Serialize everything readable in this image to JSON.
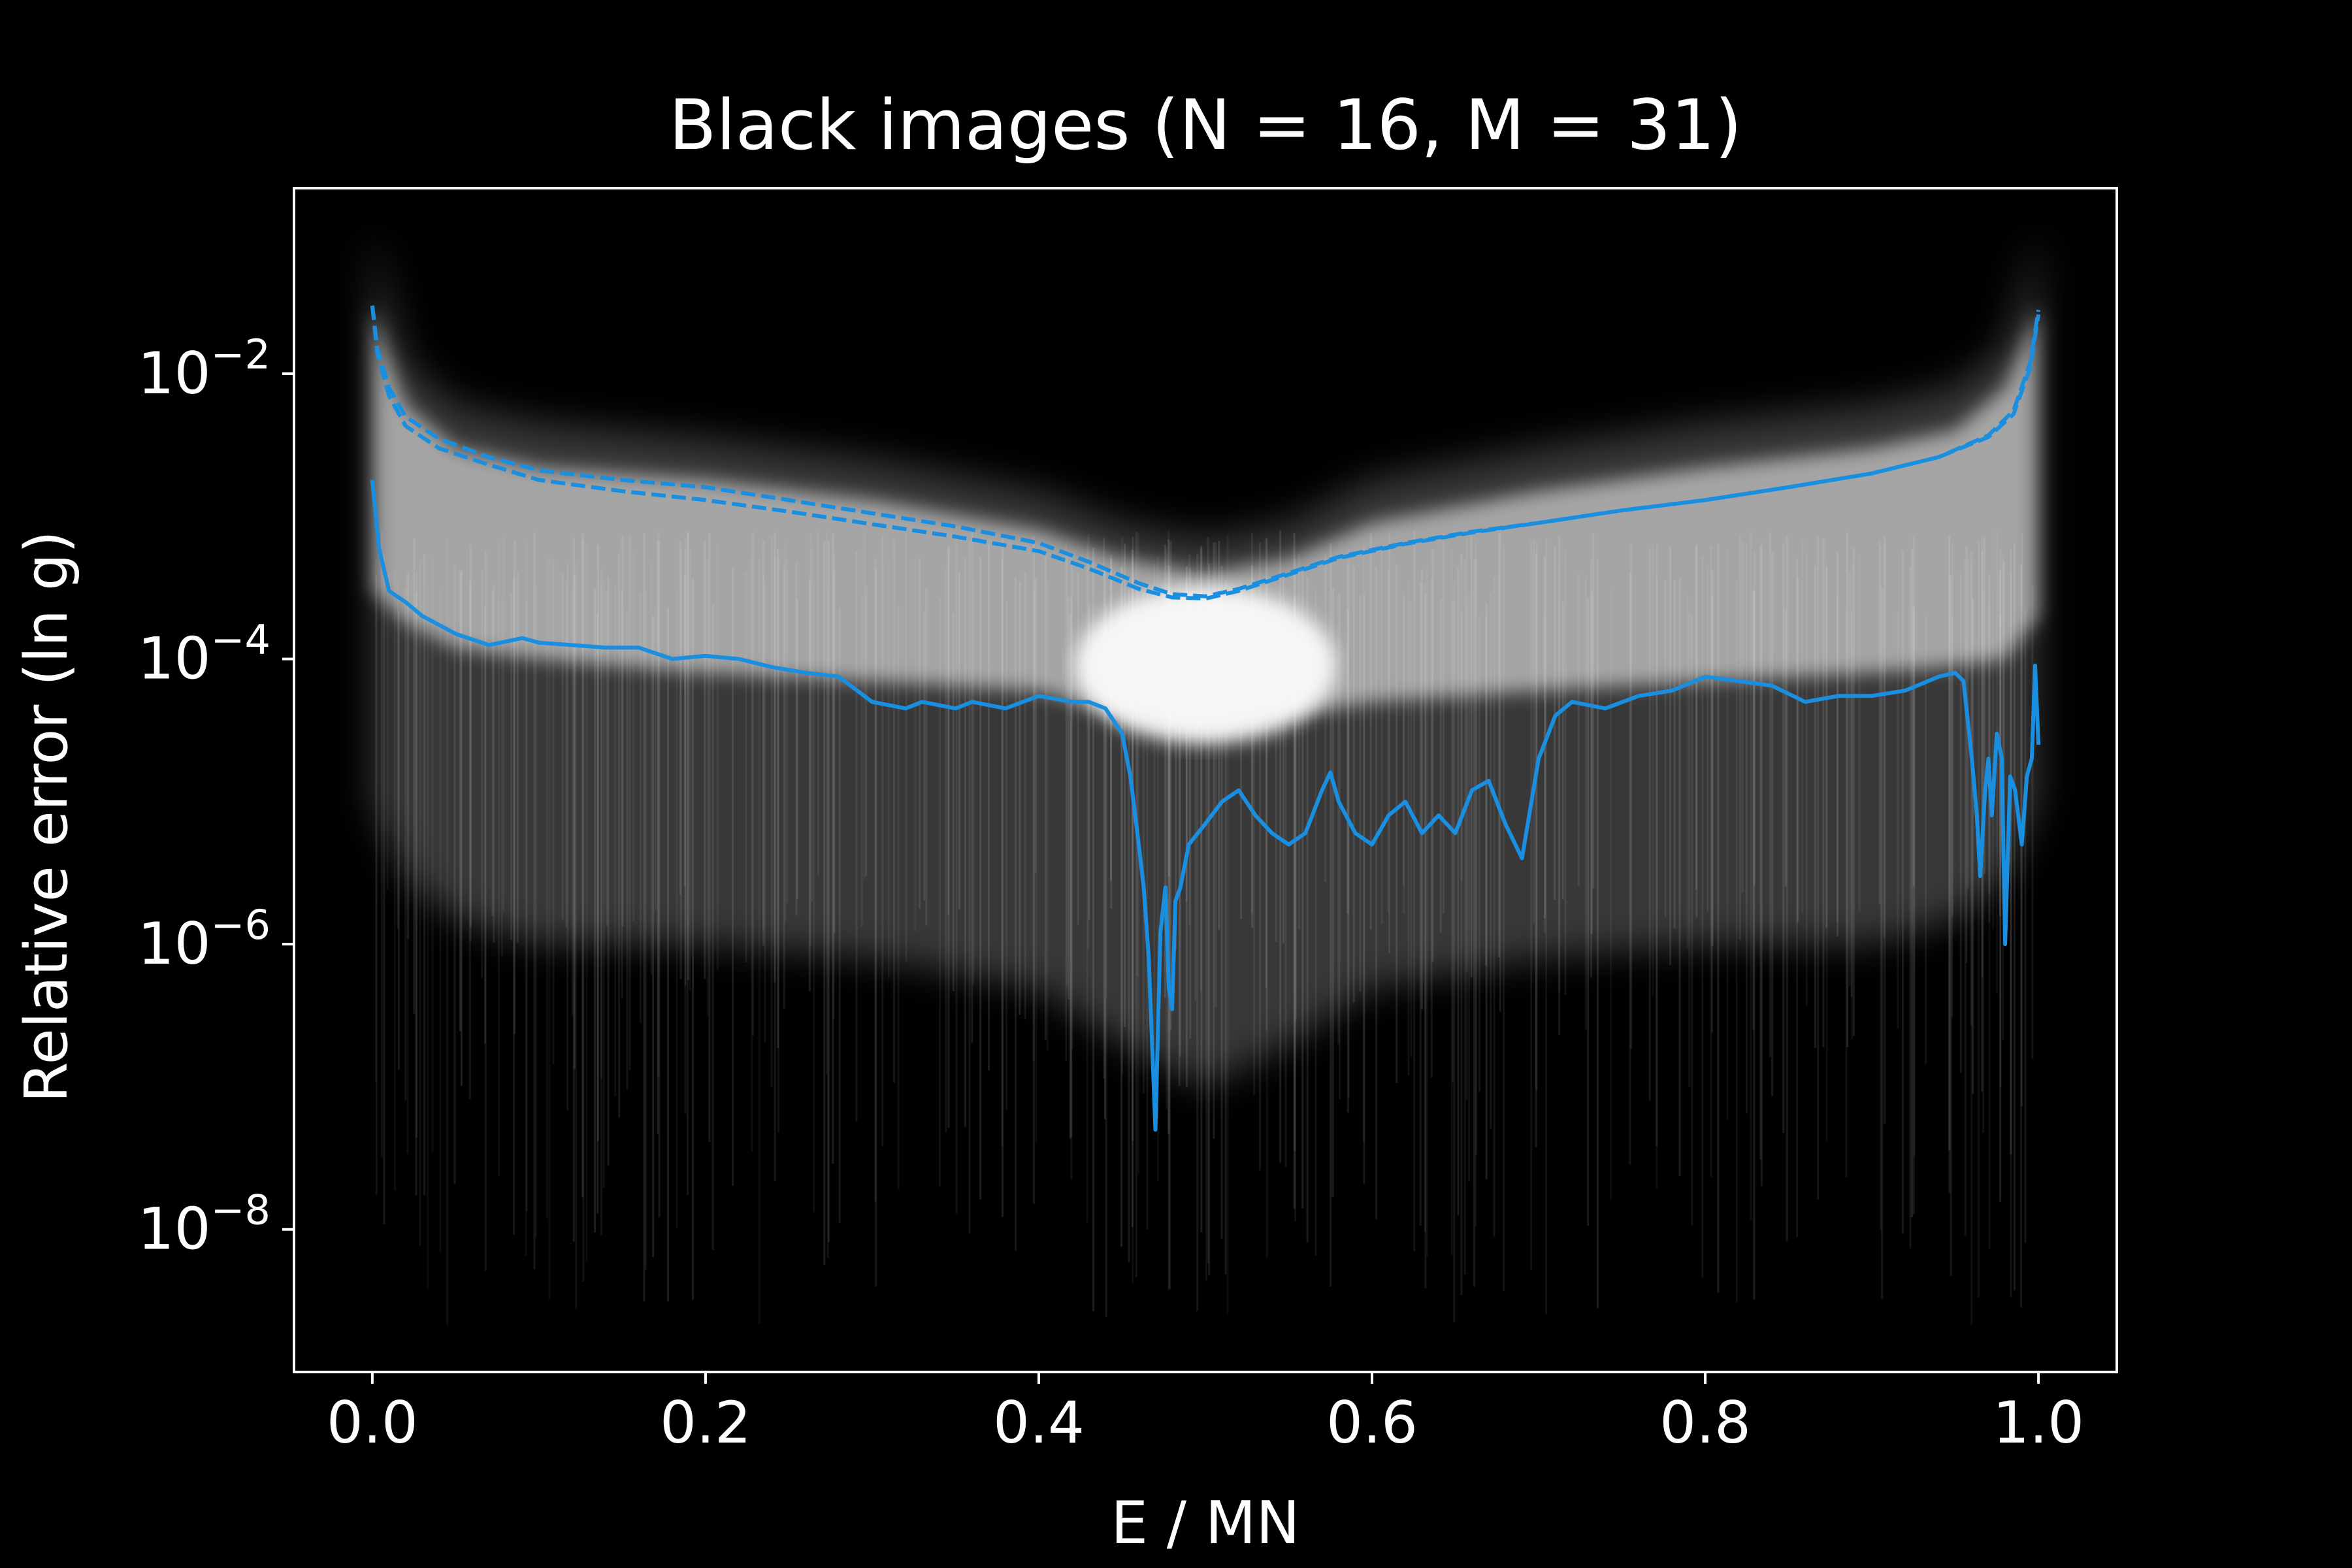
{
  "chart_data": {
    "type": "line",
    "title": "Black images (N = 16, M = 31)",
    "xlabel": "E / MN",
    "ylabel": "Relative error (ln g)",
    "yscale": "log",
    "xlim": [
      -0.047,
      1.047
    ],
    "ylim": [
      1e-09,
      0.2
    ],
    "xticks": [
      {
        "value": 0.0,
        "label": "0.0"
      },
      {
        "value": 0.2,
        "label": "0.2"
      },
      {
        "value": 0.4,
        "label": "0.4"
      },
      {
        "value": 0.6,
        "label": "0.6"
      },
      {
        "value": 0.8,
        "label": "0.8"
      },
      {
        "value": 1.0,
        "label": "1.0"
      }
    ],
    "yticks": [
      {
        "value": 0.01,
        "base": "10",
        "exp": "−2"
      },
      {
        "value": 0.0001,
        "base": "10",
        "exp": "−4"
      },
      {
        "value": 1e-06,
        "base": "10",
        "exp": "−6"
      },
      {
        "value": 1e-08,
        "base": "10",
        "exp": "−8"
      }
    ],
    "background": "#000000",
    "foreground": "#ffffff",
    "grid": false,
    "legend": "none",
    "band": {
      "description_color": "#ffffff",
      "x": [
        0.0,
        0.02,
        0.05,
        0.1,
        0.2,
        0.3,
        0.4,
        0.45,
        0.5,
        0.55,
        0.6,
        0.7,
        0.8,
        0.9,
        0.95,
        0.98,
        1.0
      ],
      "upper": [
        0.1,
        0.012,
        0.006,
        0.0045,
        0.0035,
        0.0025,
        0.0015,
        0.0009,
        0.0007,
        0.0009,
        0.0018,
        0.003,
        0.0045,
        0.006,
        0.008,
        0.015,
        0.1
      ],
      "core_upper": [
        0.03,
        0.006,
        0.003,
        0.0022,
        0.0018,
        0.0013,
        0.0008,
        0.0005,
        0.0004,
        0.0005,
        0.0009,
        0.0015,
        0.0022,
        0.003,
        0.004,
        0.008,
        0.03
      ],
      "core_lower": [
        0.0003,
        0.00018,
        0.00012,
        0.0001,
        8e-05,
        7e-05,
        6e-05,
        4e-05,
        3e-05,
        4e-05,
        5e-05,
        6e-05,
        7e-05,
        8e-05,
        9e-05,
        0.0001,
        0.0002
      ],
      "lower": [
        1e-05,
        3e-06,
        1.5e-06,
        1e-06,
        1e-06,
        8e-07,
        5e-07,
        2e-07,
        1e-07,
        2e-07,
        5e-07,
        8e-07,
        1e-06,
        1e-06,
        1.5e-06,
        3e-06,
        1e-05
      ]
    },
    "series": [
      {
        "style": "dashed",
        "color": "#1a8fe0",
        "x": [
          0.0,
          0.003,
          0.01,
          0.02,
          0.04,
          0.07,
          0.1,
          0.15,
          0.2,
          0.25,
          0.3,
          0.35,
          0.4,
          0.43,
          0.46,
          0.48,
          0.5,
          0.52,
          0.55,
          0.58,
          0.62,
          0.66,
          0.7,
          0.75,
          0.8,
          0.85,
          0.9,
          0.94,
          0.97,
          0.985,
          0.995,
          1.0
        ],
        "y": [
          0.03,
          0.015,
          0.008,
          0.005,
          0.0035,
          0.0026,
          0.0021,
          0.0018,
          0.0016,
          0.0013,
          0.00105,
          0.00085,
          0.00065,
          0.00048,
          0.00034,
          0.000285,
          0.000275,
          0.00031,
          0.0004,
          0.00052,
          0.00065,
          0.00078,
          0.0009,
          0.0011,
          0.0013,
          0.0016,
          0.002,
          0.0026,
          0.0037,
          0.0055,
          0.012,
          0.028
        ]
      },
      {
        "style": "dashed",
        "color": "#1a8fe0",
        "x": [
          0.0,
          0.003,
          0.01,
          0.02,
          0.04,
          0.07,
          0.1,
          0.15,
          0.2,
          0.25,
          0.3,
          0.35,
          0.4,
          0.43,
          0.46,
          0.48,
          0.5,
          0.52,
          0.55,
          0.58,
          0.62,
          0.66,
          0.7,
          0.75,
          0.8,
          0.85,
          0.9,
          0.94,
          0.97,
          0.985,
          0.995,
          1.0
        ],
        "y": [
          0.03,
          0.014,
          0.007,
          0.0043,
          0.003,
          0.0023,
          0.0018,
          0.0015,
          0.0013,
          0.00108,
          0.00088,
          0.00072,
          0.00057,
          0.00043,
          0.00031,
          0.00027,
          0.000265,
          0.0003,
          0.00039,
          0.00051,
          0.00064,
          0.00077,
          0.0009,
          0.0011,
          0.0013,
          0.0016,
          0.002,
          0.0026,
          0.0036,
          0.0052,
          0.011,
          0.026
        ]
      },
      {
        "style": "solid",
        "color": "#1a8fe0",
        "x": [
          0.0,
          0.004,
          0.01,
          0.02,
          0.03,
          0.05,
          0.07,
          0.09,
          0.1,
          0.12,
          0.14,
          0.16,
          0.18,
          0.2,
          0.22,
          0.24,
          0.26,
          0.28,
          0.3,
          0.32,
          0.33,
          0.35,
          0.36,
          0.38,
          0.4,
          0.42,
          0.43,
          0.44,
          0.45,
          0.455,
          0.46,
          0.463,
          0.466,
          0.47,
          0.473,
          0.476,
          0.478,
          0.48,
          0.482,
          0.485,
          0.49,
          0.5,
          0.51,
          0.52,
          0.53,
          0.54,
          0.55,
          0.56,
          0.57,
          0.575,
          0.58,
          0.59,
          0.6,
          0.61,
          0.62,
          0.63,
          0.64,
          0.65,
          0.66,
          0.67,
          0.68,
          0.69,
          0.7,
          0.71,
          0.72,
          0.74,
          0.76,
          0.78,
          0.8,
          0.82,
          0.84,
          0.86,
          0.88,
          0.9,
          0.92,
          0.94,
          0.95,
          0.955,
          0.96,
          0.963,
          0.965,
          0.968,
          0.97,
          0.972,
          0.975,
          0.978,
          0.98,
          0.983,
          0.986,
          0.99,
          0.993,
          0.996,
          0.998,
          1.0
        ],
        "y": [
          0.0018,
          0.0006,
          0.0003,
          0.00025,
          0.0002,
          0.00015,
          0.000125,
          0.00014,
          0.00013,
          0.000125,
          0.00012,
          0.00012,
          0.0001,
          0.000105,
          0.0001,
          8.75e-05,
          8e-05,
          7.5e-05,
          5e-05,
          4.5e-05,
          5e-05,
          4.5e-05,
          5e-05,
          4.5e-05,
          5.5e-05,
          5e-05,
          5e-05,
          4.5e-05,
          3e-05,
          1.5e-05,
          5e-06,
          2.5e-06,
          8e-07,
          5e-08,
          1.2e-06,
          2.5e-06,
          5e-07,
          3.5e-07,
          2e-06,
          2.5e-06,
          5e-06,
          7e-06,
          1e-05,
          1.2e-05,
          8e-06,
          6e-06,
          5e-06,
          6e-06,
          1.2e-05,
          1.6e-05,
          1e-05,
          6e-06,
          5e-06,
          8e-06,
          1e-05,
          6e-06,
          8e-06,
          6e-06,
          1.2e-05,
          1.4e-05,
          7e-06,
          4e-06,
          2e-05,
          4e-05,
          5e-05,
          4.5e-05,
          5.5e-05,
          6e-05,
          7.5e-05,
          7e-05,
          6.5e-05,
          5e-05,
          5.5e-05,
          5.5e-05,
          6e-05,
          7.5e-05,
          8e-05,
          7e-05,
          2e-05,
          8e-06,
          3e-06,
          1.2e-05,
          2e-05,
          8e-06,
          3e-05,
          2e-05,
          1e-06,
          1.5e-05,
          1.2e-05,
          5e-06,
          1.5e-05,
          2e-05,
          9e-05,
          2.5e-05
        ]
      }
    ]
  }
}
